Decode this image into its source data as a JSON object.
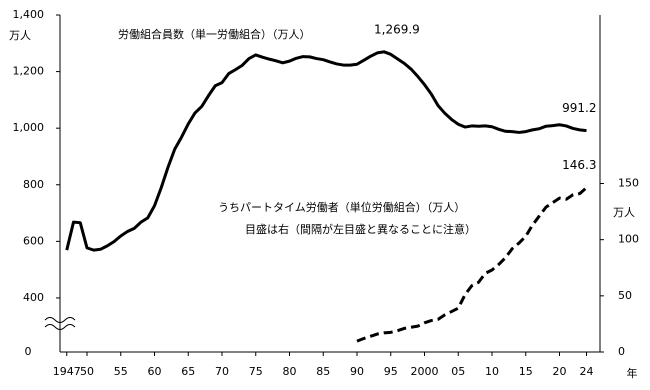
{
  "chart_data": {
    "type": "line",
    "x": [
      1947,
      1948,
      1949,
      1950,
      1951,
      1952,
      1953,
      1954,
      1955,
      1956,
      1957,
      1958,
      1959,
      1960,
      1961,
      1962,
      1963,
      1964,
      1965,
      1966,
      1967,
      1968,
      1969,
      1970,
      1971,
      1972,
      1973,
      1974,
      1975,
      1976,
      1977,
      1978,
      1979,
      1980,
      1981,
      1982,
      1983,
      1984,
      1985,
      1986,
      1987,
      1988,
      1989,
      1990,
      1991,
      1992,
      1993,
      1994,
      1995,
      1996,
      1997,
      1998,
      1999,
      2000,
      2001,
      2002,
      2003,
      2004,
      2005,
      2006,
      2007,
      2008,
      2009,
      2010,
      2011,
      2012,
      2013,
      2014,
      2015,
      2016,
      2017,
      2018,
      2019,
      2020,
      2021,
      2022,
      2023,
      2024
    ],
    "xlim": [
      1946,
      2026
    ],
    "xticks": [
      {
        "value": 1947,
        "label": "1947"
      },
      {
        "value": 1950,
        "label": "50"
      },
      {
        "value": 1955,
        "label": "55"
      },
      {
        "value": 1960,
        "label": "60"
      },
      {
        "value": 1965,
        "label": "65"
      },
      {
        "value": 1970,
        "label": "70"
      },
      {
        "value": 1975,
        "label": "75"
      },
      {
        "value": 1980,
        "label": "80"
      },
      {
        "value": 1985,
        "label": "85"
      },
      {
        "value": 1990,
        "label": "90"
      },
      {
        "value": 1995,
        "label": "95"
      },
      {
        "value": 2000,
        "label": "2000"
      },
      {
        "value": 2005,
        "label": "05"
      },
      {
        "value": 2010,
        "label": "10"
      },
      {
        "value": 2015,
        "label": "15"
      },
      {
        "value": 2020,
        "label": "20"
      },
      {
        "value": 2024,
        "label": "24"
      }
    ],
    "x_unit": "年",
    "ylim": [
      209,
      1400
    ],
    "yticks": [
      400,
      600,
      800,
      {
        "value": 1000,
        "label": "1,000"
      },
      {
        "value": 1200,
        "label": "1,200"
      },
      {
        "value": 1400,
        "label": "1,400"
      }
    ],
    "y_unit": "万人",
    "y_break_label": "0",
    "y2lim": [
      0,
      300
    ],
    "y2ticks": [
      0,
      50,
      100,
      150
    ],
    "y2_unit": "万人",
    "grid": false,
    "annotation": "目盛は右（間隔が左目盛と異なることに注意）",
    "series": [
      {
        "name": "労働組合員数（単一労働組合）（万人）",
        "color": "#000000",
        "dash": false,
        "values": [
          569,
          668,
          666,
          577,
          569,
          572,
          584,
          599,
          619,
          635,
          646,
          668,
          683,
          726,
          790,
          862,
          926,
          968,
          1015,
          1054,
          1077,
          1115,
          1150,
          1161,
          1193,
          1207,
          1222,
          1246,
          1259,
          1251,
          1244,
          1238,
          1231,
          1237,
          1247,
          1253,
          1252,
          1246,
          1242,
          1234,
          1227,
          1223,
          1223,
          1226,
          1240,
          1254,
          1266,
          1269.9,
          1261,
          1245,
          1229,
          1209,
          1183,
          1154,
          1121,
          1080,
          1053,
          1031,
          1014,
          1004,
          1008,
          1007,
          1008,
          1005,
          996,
          989,
          988,
          985,
          988,
          994,
          998,
          1007,
          1009,
          1012,
          1008,
          999,
          994,
          991.2
        ],
        "value_labels": [
          null,
          null,
          null,
          null,
          null,
          null,
          null,
          null,
          null,
          null,
          null,
          null,
          null,
          null,
          null,
          null,
          null,
          null,
          null,
          null,
          null,
          null,
          null,
          null,
          null,
          null,
          null,
          null,
          null,
          null,
          null,
          null,
          null,
          null,
          null,
          null,
          null,
          null,
          null,
          null,
          null,
          null,
          null,
          null,
          null,
          null,
          null,
          "1,269.9",
          null,
          null,
          null,
          null,
          null,
          null,
          null,
          null,
          null,
          null,
          null,
          null,
          null,
          null,
          null,
          null,
          null,
          null,
          null,
          null,
          null,
          null,
          null,
          null,
          null,
          null,
          null,
          null,
          null,
          "991.2"
        ]
      },
      {
        "name": "うちパートタイム労働者（単位労働組合）（万人）",
        "color": "#000000",
        "dash": true,
        "axis": "y2",
        "values": [
          null,
          null,
          null,
          null,
          null,
          null,
          null,
          null,
          null,
          null,
          null,
          null,
          null,
          null,
          null,
          null,
          null,
          null,
          null,
          null,
          null,
          null,
          null,
          null,
          null,
          null,
          null,
          null,
          null,
          null,
          null,
          null,
          null,
          null,
          null,
          null,
          null,
          null,
          null,
          null,
          null,
          null,
          null,
          9.7,
          12,
          14,
          16,
          17,
          17.5,
          19,
          21,
          22,
          23,
          26,
          28,
          29,
          33,
          36,
          39,
          51,
          59,
          62,
          70,
          73,
          78,
          84,
          92,
          97,
          103,
          113,
          121,
          129,
          133,
          137,
          136,
          140,
          141,
          146.3
        ],
        "value_labels": [
          null,
          null,
          null,
          null,
          null,
          null,
          null,
          null,
          null,
          null,
          null,
          null,
          null,
          null,
          null,
          null,
          null,
          null,
          null,
          null,
          null,
          null,
          null,
          null,
          null,
          null,
          null,
          null,
          null,
          null,
          null,
          null,
          null,
          null,
          null,
          null,
          null,
          null,
          null,
          null,
          null,
          null,
          null,
          null,
          null,
          null,
          null,
          null,
          null,
          null,
          null,
          null,
          null,
          null,
          null,
          null,
          null,
          null,
          null,
          null,
          null,
          null,
          null,
          null,
          null,
          null,
          null,
          null,
          null,
          null,
          null,
          null,
          null,
          null,
          null,
          null,
          null,
          "146.3"
        ]
      }
    ]
  }
}
